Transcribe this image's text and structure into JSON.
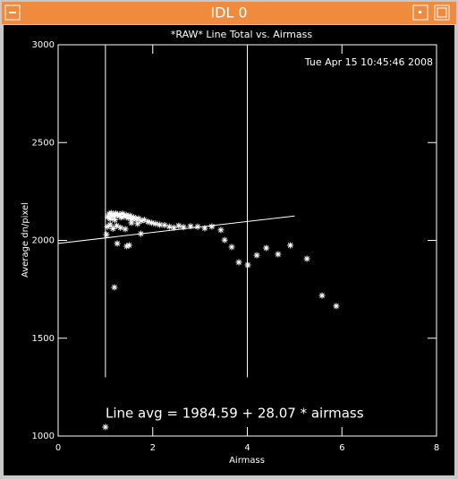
{
  "window_title": "IDL 0",
  "chart_data": {
    "type": "scatter",
    "title": "*RAW* Line Total vs. Airmass",
    "timestamp": "Tue Apr 15 10:45:46 2008",
    "xlabel": "Airmass",
    "ylabel": "Average dn/pixel",
    "annotation": "Line avg = 1984.59 + 28.07 * airmass",
    "fit": {
      "intercept": 1984.59,
      "slope": 28.07,
      "xrange": [
        0,
        5
      ]
    },
    "vlines": [
      1,
      4
    ],
    "vline_ylim": [
      1300,
      3000
    ],
    "color": "#ffffff",
    "xlim": [
      0,
      8
    ],
    "xticks": [
      0,
      2,
      4,
      6,
      8
    ],
    "ylim": [
      1000,
      3000
    ],
    "yticks": [
      1000,
      1500,
      2000,
      2500,
      3000
    ],
    "x": [
      1.0,
      1.19,
      1.25,
      1.45,
      1.5,
      1.75,
      1.02,
      1.05,
      1.08,
      1.1,
      1.12,
      1.15,
      1.18,
      1.2,
      1.22,
      1.26,
      1.3,
      1.33,
      1.36,
      1.4,
      1.44,
      1.48,
      1.52,
      1.56,
      1.6,
      1.65,
      1.7,
      1.76,
      1.82,
      1.9,
      1.98,
      2.06,
      2.15,
      2.25,
      2.35,
      2.45,
      2.55,
      2.65,
      2.8,
      2.95,
      3.1,
      1.04,
      1.1,
      1.16,
      1.24,
      1.32,
      1.42,
      1.55,
      1.68,
      3.25,
      3.44,
      3.52,
      3.67,
      3.82,
      4.01,
      4.2,
      4.4,
      4.65,
      4.91,
      5.26,
      5.58,
      5.88
    ],
    "values": [
      1046,
      1760,
      1984,
      1970,
      1975,
      2034,
      2030,
      2120,
      2135,
      2110,
      2140,
      2125,
      2130,
      2105,
      2138,
      2128,
      2132,
      2118,
      2136,
      2122,
      2130,
      2115,
      2126,
      2110,
      2118,
      2108,
      2112,
      2100,
      2105,
      2095,
      2090,
      2085,
      2080,
      2078,
      2070,
      2065,
      2075,
      2068,
      2072,
      2070,
      2062,
      2070,
      2080,
      2060,
      2075,
      2065,
      2058,
      2090,
      2085,
      2071,
      2053,
      2002,
      1966,
      1888,
      1874,
      1924,
      1961,
      1929,
      1975,
      1906,
      1718,
      1664
    ]
  }
}
